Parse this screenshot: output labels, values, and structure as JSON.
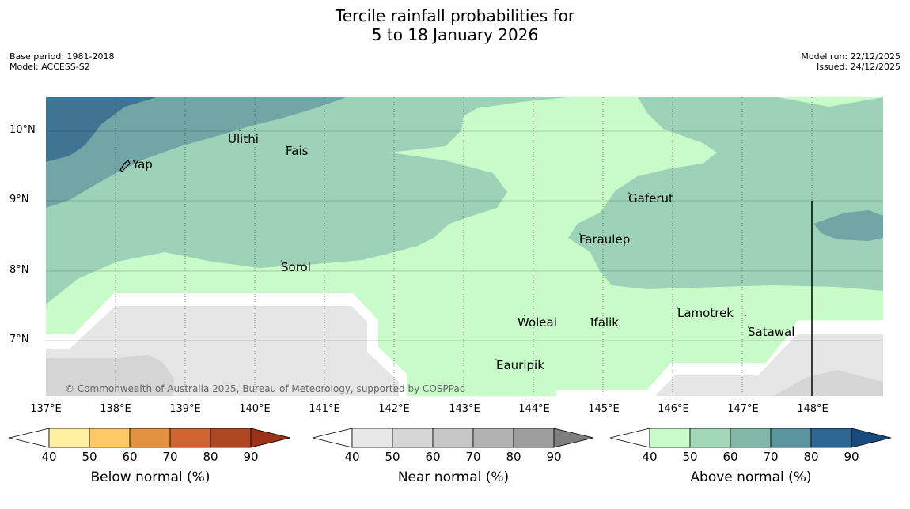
{
  "title": {
    "line1": "Tercile rainfall probabilities for",
    "line2": "5 to 18 January 2026"
  },
  "meta_left": {
    "base_period": "Base period: 1981-2018",
    "model": "Model: ACCESS-S2"
  },
  "meta_right": {
    "model_run": "Model run: 22/12/2025",
    "issued": "Issued: 24/12/2025"
  },
  "lat_labels": [
    "10°N",
    "9°N",
    "8°N",
    "7°N"
  ],
  "lon_labels": [
    "137°E",
    "138°E",
    "139°E",
    "140°E",
    "141°E",
    "142°E",
    "143°E",
    "144°E",
    "145°E",
    "146°E",
    "147°E",
    "148°E"
  ],
  "places": [
    "Ulithi",
    "Yap",
    "Fais",
    "Gaferut",
    "Faraulep",
    "Sorol",
    "Lamotrek",
    "Woleai",
    "Ifalik",
    "Satawal",
    "Eauripik"
  ],
  "copyright": "© Commonwealth of Australia 2025, Bureau of Meteorology, supported by COSPPac",
  "legends": {
    "below": {
      "title": "Below normal (%)",
      "ticks": [
        "40",
        "50",
        "60",
        "70",
        "80",
        "90"
      ],
      "colors": [
        "#ffffff",
        "#ffeda0",
        "#fec965",
        "#e29140",
        "#cf6331",
        "#ae4823",
        "#9a3219"
      ]
    },
    "near": {
      "title": "Near normal (%)",
      "ticks": [
        "40",
        "50",
        "60",
        "70",
        "80",
        "90"
      ],
      "colors": [
        "#ffffff",
        "#e8e8e8",
        "#d6d6d6",
        "#c6c6c6",
        "#b2b2b2",
        "#9e9e9e",
        "#7e7e7e"
      ]
    },
    "above": {
      "title": "Above normal (%)",
      "ticks": [
        "40",
        "50",
        "60",
        "70",
        "80",
        "90"
      ],
      "colors": [
        "#ffffff",
        "#c8fbc8",
        "#a2d6b8",
        "#82b6a8",
        "#5a949e",
        "#2d6693",
        "#174b7c"
      ]
    }
  },
  "map_colors": {
    "above_40_50": "#c8fbc8",
    "above_50_60": "#9dd2b9",
    "above_60_70": "#72a6a6",
    "above_70_80": "#3f7492",
    "near_40_50": "#e6e6e6",
    "near_50_60": "#d5d5d5"
  }
}
